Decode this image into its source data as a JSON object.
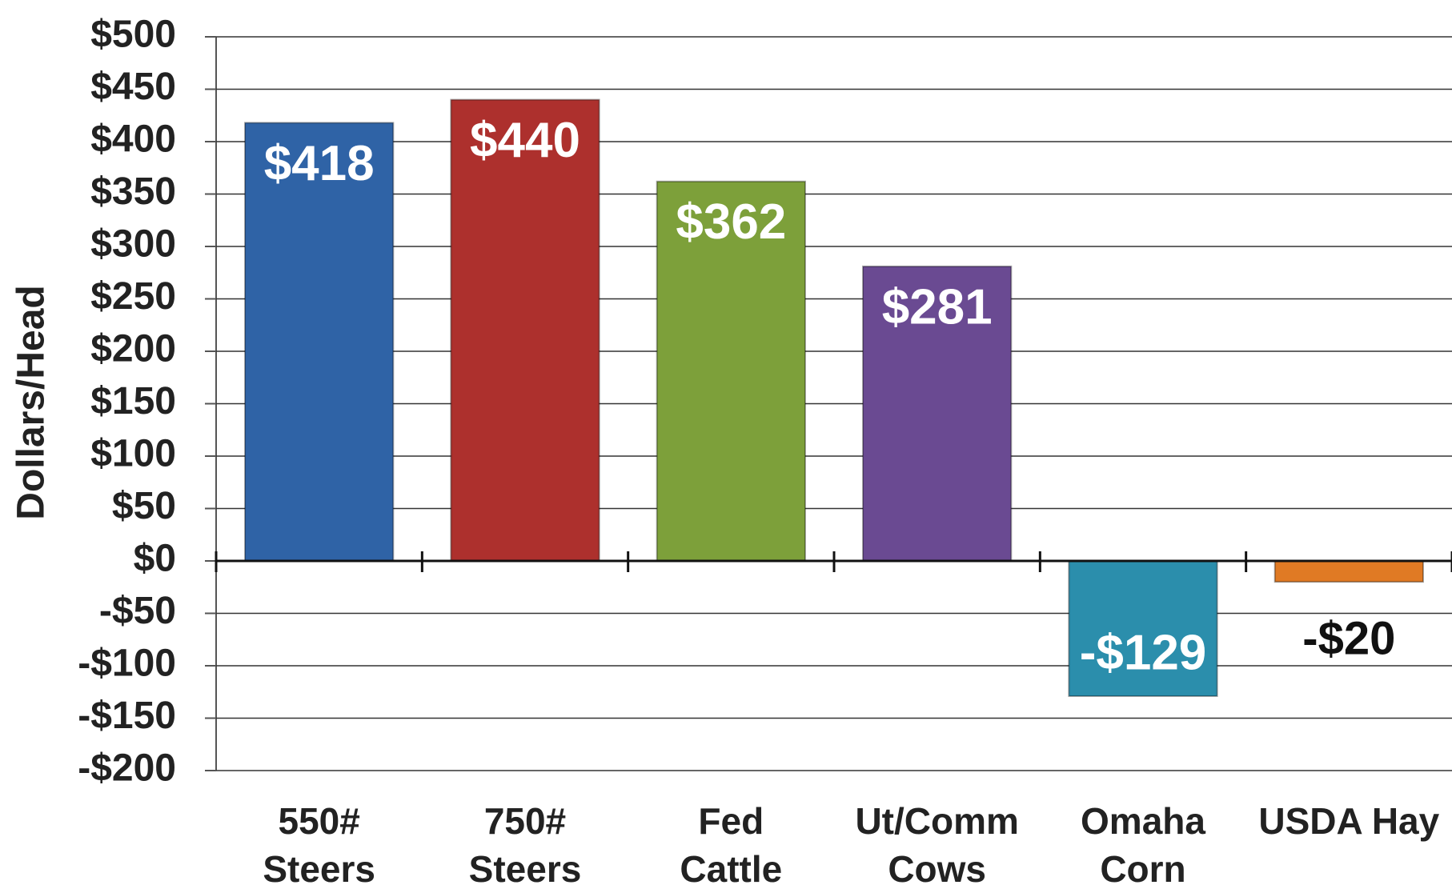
{
  "chart_data": {
    "type": "bar",
    "y_label": "Dollars/Head",
    "categories": [
      "550#\nSteers",
      "750#\nSteers",
      "Fed\nCattle",
      "Ut/Comm\nCows",
      "Omaha\nCorn",
      "USDA Hay"
    ],
    "values": [
      418,
      440,
      362,
      281,
      -129,
      -20
    ],
    "value_labels": [
      "$418",
      "$440",
      "$362",
      "$281",
      "-$129",
      "-$20"
    ],
    "colors": [
      "#2f63a6",
      "#ad302d",
      "#7da03a",
      "#6a4a92",
      "#2b8eac",
      "#e07a24"
    ],
    "ylim": [
      -200,
      500
    ],
    "yticks": [
      {
        "value": -200,
        "label": "-$200"
      },
      {
        "value": -150,
        "label": "-$150"
      },
      {
        "value": -100,
        "label": "-$100"
      },
      {
        "value": -50,
        "label": "-$50"
      },
      {
        "value": 0,
        "label": "$0"
      },
      {
        "value": 50,
        "label": "$50"
      },
      {
        "value": 100,
        "label": "$100"
      },
      {
        "value": 150,
        "label": "$150"
      },
      {
        "value": 200,
        "label": "$200"
      },
      {
        "value": 250,
        "label": "$250"
      },
      {
        "value": 300,
        "label": "$300"
      },
      {
        "value": 350,
        "label": "$350"
      },
      {
        "value": 400,
        "label": "$400"
      },
      {
        "value": 450,
        "label": "$450"
      },
      {
        "value": 500,
        "label": "$500"
      }
    ],
    "grid": true
  }
}
